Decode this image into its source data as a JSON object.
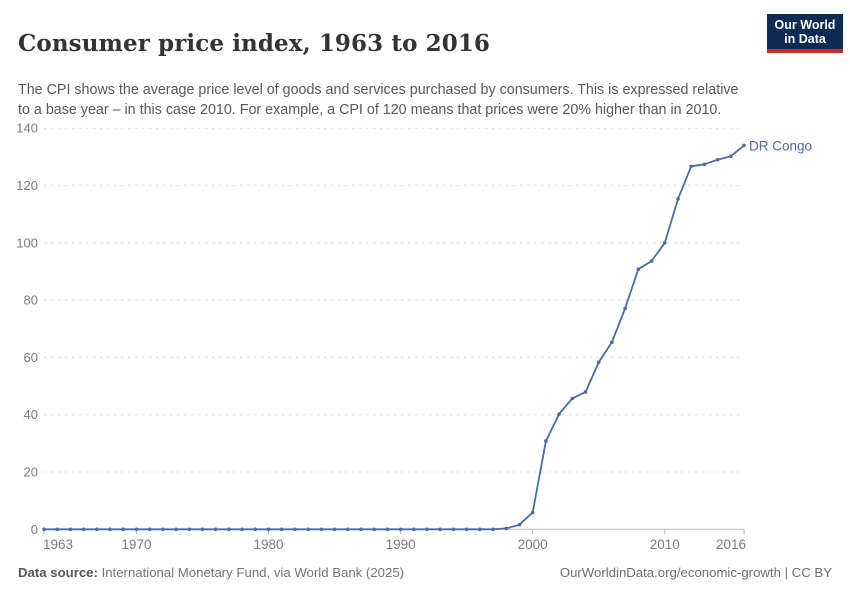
{
  "header": {
    "title": "Consumer price index, 1963 to 2016",
    "subtitle": "The CPI shows the average price level of goods and services purchased by consumers. This is expressed relative to a base year – in this case 2010. For example, a CPI of 120 means that prices were 20% higher than in 2010.",
    "logo": {
      "line1": "Our World",
      "line2": "in Data"
    }
  },
  "brand": {
    "navy": "#0d2b53",
    "red": "#d4291f"
  },
  "chart_data": {
    "type": "line",
    "title": "Consumer price index, 1963 to 2016",
    "xlabel": "",
    "ylabel": "",
    "x_range": [
      1963,
      2016
    ],
    "ylim": [
      0,
      140
    ],
    "y_ticks": [
      0,
      20,
      40,
      60,
      80,
      100,
      120,
      140
    ],
    "x_ticks": [
      1963,
      1970,
      1980,
      1990,
      2000,
      2010,
      2016
    ],
    "grid": "horizontal-dashed",
    "legend_position": "end-of-line-label",
    "series": [
      {
        "name": "DR Congo",
        "color": "#4a6ba8",
        "x": [
          1963,
          1964,
          1965,
          1966,
          1967,
          1968,
          1969,
          1970,
          1971,
          1972,
          1973,
          1974,
          1975,
          1976,
          1977,
          1978,
          1979,
          1980,
          1981,
          1982,
          1983,
          1984,
          1985,
          1986,
          1987,
          1988,
          1989,
          1990,
          1991,
          1992,
          1993,
          1994,
          1995,
          1996,
          1997,
          1998,
          1999,
          2000,
          2001,
          2002,
          2003,
          2004,
          2005,
          2006,
          2007,
          2008,
          2009,
          2010,
          2011,
          2012,
          2013,
          2014,
          2015,
          2016
        ],
        "values": [
          0,
          0,
          0,
          0,
          0,
          0,
          0,
          0,
          0,
          0,
          0,
          0,
          0,
          0,
          0,
          0,
          0,
          0,
          0,
          0,
          0,
          0,
          0,
          0,
          0,
          0,
          0,
          0,
          0,
          0,
          0,
          0,
          0,
          0,
          0,
          0.3,
          1.6,
          5.9,
          30.8,
          40.2,
          45.7,
          47.9,
          58.3,
          65.3,
          77.1,
          90.8,
          93.6,
          100,
          115.3,
          126.7,
          127.4,
          129,
          130.2,
          134
        ]
      }
    ]
  },
  "footer": {
    "source_label": "Data source:",
    "source_text": "International Monetary Fund, via World Bank (2025)",
    "credit": "OurWorldinData.org/economic-growth | CC BY"
  }
}
